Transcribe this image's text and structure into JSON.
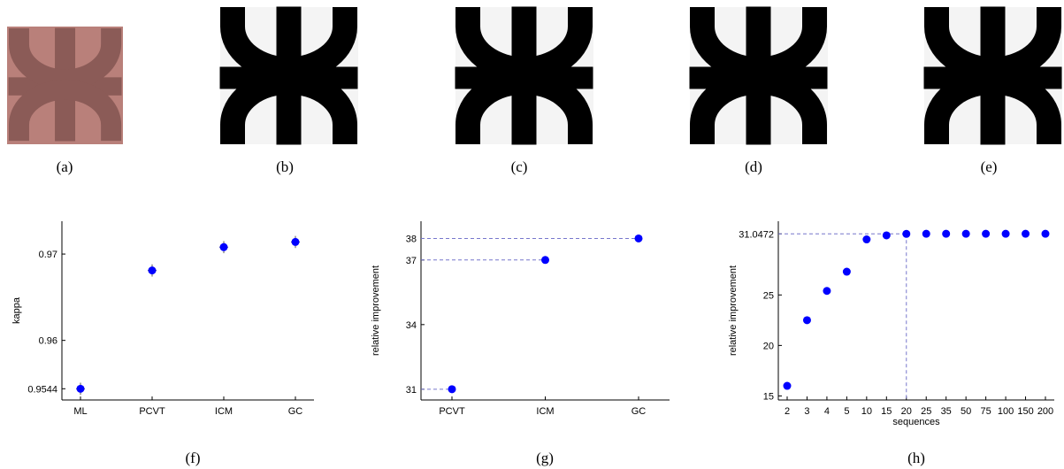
{
  "captions": [
    "(a)",
    "(b)",
    "(c)",
    "(d)",
    "(e)",
    "(f)",
    "(g)",
    "(h)"
  ],
  "chart_data": [
    {
      "type": "scatter",
      "categories": [
        "ML",
        "PCVT",
        "ICM",
        "GC"
      ],
      "values": [
        0.9544,
        0.9681,
        0.9708,
        0.9714
      ],
      "errors": [
        0.0007,
        0.0007,
        0.0007,
        0.0007
      ],
      "ylabel": "kappa",
      "ylim": [
        0.9531,
        0.9738
      ],
      "yticks": [
        0.9544,
        0.96,
        0.97
      ],
      "color": "#0000ff"
    },
    {
      "type": "scatter",
      "categories": [
        "PCVT",
        "ICM",
        "GC"
      ],
      "values": [
        31,
        37,
        38
      ],
      "ylabel": "relative improvement",
      "ylim": [
        30.5,
        38.8
      ],
      "yticks": [
        31,
        34,
        37,
        38
      ],
      "guides": [
        0,
        1,
        2
      ],
      "color": "#0000ff"
    },
    {
      "type": "scatter",
      "categories": [
        "2",
        "3",
        "4",
        "5",
        "10",
        "15",
        "20",
        "25",
        "35",
        "50",
        "75",
        "100",
        "150",
        "200"
      ],
      "values": [
        16,
        22.5,
        25.4,
        27.3,
        30.5,
        30.9,
        31.0472,
        31.06,
        31.06,
        31.06,
        31.06,
        31.06,
        31.06,
        31.06
      ],
      "xlabel": "sequences",
      "ylabel": "relative improvement",
      "ylim": [
        14.6,
        32.3
      ],
      "yticks": [
        15,
        20,
        25,
        31.0472
      ],
      "guides": [
        6
      ],
      "guide_vertical": true,
      "color": "#0000ff"
    }
  ]
}
